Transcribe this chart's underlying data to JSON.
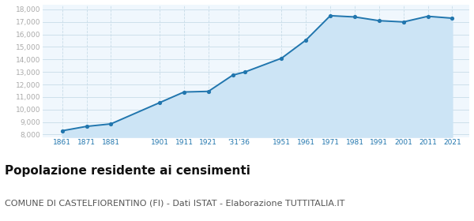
{
  "years": [
    1861,
    1871,
    1881,
    1901,
    1911,
    1921,
    1931,
    1936,
    1951,
    1961,
    1971,
    1981,
    1991,
    2001,
    2011,
    2021
  ],
  "population": [
    8300,
    8650,
    8850,
    10550,
    11400,
    11450,
    12750,
    13000,
    14100,
    15550,
    17500,
    17400,
    17100,
    17000,
    17450,
    17300
  ],
  "x_tick_labels": [
    "1861",
    "1871",
    "1881",
    "1901",
    "1911",
    "1921",
    "'31'36",
    "1951",
    "1961",
    "1971",
    "1981",
    "1991",
    "2001",
    "2011",
    "2021"
  ],
  "x_tick_positions": [
    1861,
    1871,
    1881,
    1901,
    1911,
    1921,
    1933.5,
    1951,
    1961,
    1971,
    1981,
    1991,
    2001,
    2011,
    2021
  ],
  "ylim": [
    7800,
    18400
  ],
  "yticks": [
    8000,
    9000,
    10000,
    11000,
    12000,
    13000,
    14000,
    15000,
    16000,
    17000,
    18000
  ],
  "ytick_labels": [
    "8,000",
    "9,000",
    "10,000",
    "11,000",
    "12,000",
    "13,000",
    "14,000",
    "15,000",
    "16,000",
    "17,000",
    "18,000"
  ],
  "line_color": "#2176ae",
  "fill_color": "#cce4f5",
  "marker_color": "#2176ae",
  "title": "Popolazione residente ai censimenti",
  "subtitle": "COMUNE DI CASTELFIORENTINO (FI) - Dati ISTAT - Elaborazione TUTTITALIA.IT",
  "title_fontsize": 11,
  "subtitle_fontsize": 8,
  "bg_color": "#f0f7fd",
  "grid_color": "#c8dce8",
  "xlim": [
    1853,
    2028
  ],
  "fill_baseline": 7800
}
